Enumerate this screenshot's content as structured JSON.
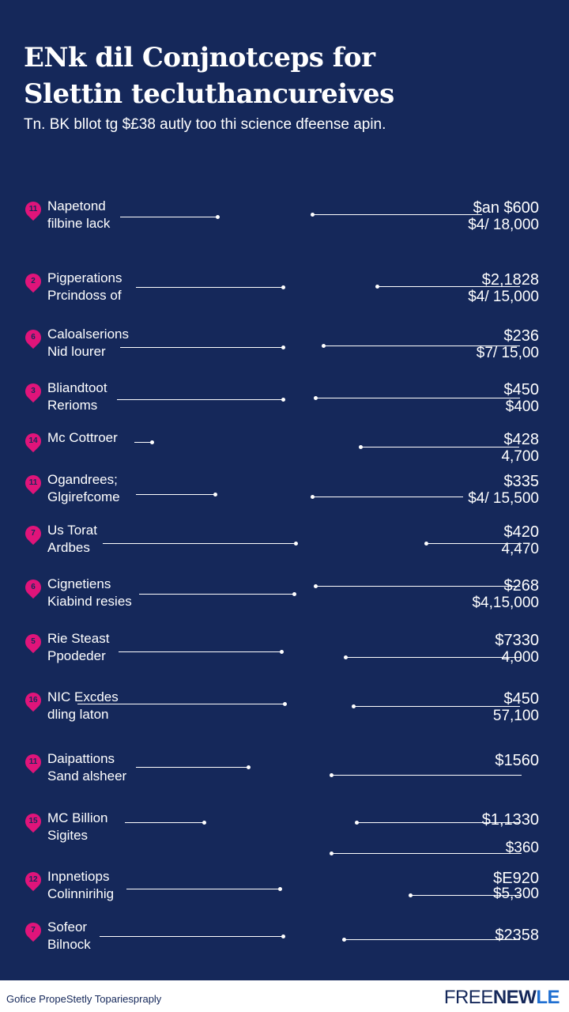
{
  "header": {
    "title_line1": "ENk dil Conjnotceps for",
    "title_line2": "Slettin teсluthancureives",
    "subtitle": "Tn. BK bllot tg $£38 autly too thi science dfeense apin."
  },
  "items": [
    {
      "number": "11",
      "label1": "Napetond",
      "label2": "filbine lack",
      "value1": "$an $600",
      "value2": "$4/ 18,000"
    },
    {
      "number": "2",
      "label1": "Pigperations",
      "label2": "Prcindoss of",
      "value1": "$2,1828",
      "value2": "$4/ 15,000"
    },
    {
      "number": "6",
      "label1": "Caloalserions",
      "label2": "Nid lourer",
      "value1": "$236",
      "value2": "$7/ 15,00"
    },
    {
      "number": "3",
      "label1": "Bliandtoot",
      "label2": "Rerioms",
      "value1": "$450",
      "value2": "$400"
    },
    {
      "number": "14",
      "label1": "Mc Cottroer",
      "label2": "",
      "value1": "$428",
      "value2": "4,700"
    },
    {
      "number": "11",
      "label1": "Ogandrees;",
      "label2": "Glgirefcome",
      "value1": "$335",
      "value2": "$4/ 15,500"
    },
    {
      "number": "7",
      "label1": "Us Torat",
      "label2": "Ardbes",
      "value1": "$420",
      "value2": "4,470"
    },
    {
      "number": "6",
      "label1": "Cignetiens",
      "label2": "Kiabind resies",
      "value1": "$268",
      "value2": "$4,15,000"
    },
    {
      "number": "5",
      "label1": "Rie Steast",
      "label2": "Ppodeder",
      "value1": "$7330",
      "value2": "4,000"
    },
    {
      "number": "16",
      "label1": "NIC Excdes",
      "label2": "dling laton",
      "value1": "$450",
      "value2": "57,100"
    },
    {
      "number": "11",
      "label1": "Daipattions",
      "label2": "Sand alsheer",
      "value1": "$1560",
      "value2": ""
    },
    {
      "number": "15",
      "label1": "MC Billion",
      "label2": "Sigites",
      "value1": "$1,1330",
      "value2": "$360"
    },
    {
      "number": "12",
      "label1": "Inpnetiops",
      "label2": "Colinnirihig",
      "value1": "$E920",
      "value2": "$5,300"
    },
    {
      "number": "7",
      "label1": "Sofeor",
      "label2": "Bilnock",
      "value1": "$2358",
      "value2": ""
    }
  ],
  "footer": {
    "left": "Gofice PropeStetly Topariespraply",
    "right_light": "FREE",
    "right_bold": "NEW",
    "right_accent": "LE"
  },
  "colors": {
    "background": "#15285a",
    "marker": "#e0147a",
    "text": "#ffffff"
  }
}
